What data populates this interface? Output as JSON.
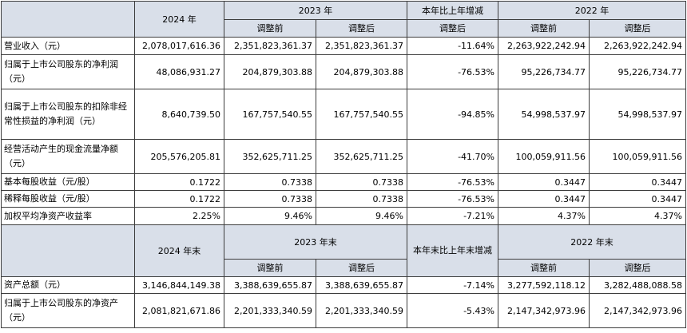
{
  "header1": {
    "y2024": "2024 年",
    "y2023": "2023 年",
    "yoy": "本年比上年增减",
    "y2022": "2022 年",
    "before": "调整前",
    "after": "调整后"
  },
  "rows1": [
    {
      "label": "营业收入（元）",
      "v": [
        "2,078,017,616.36",
        "2,351,823,361.37",
        "2,351,823,361.37",
        "-11.64%",
        "2,263,922,242.94",
        "2,263,922,242.94"
      ]
    },
    {
      "label": "归属于上市公司股东的净利润（元）",
      "v": [
        "48,086,931.27",
        "204,879,303.88",
        "204,879,303.88",
        "-76.53%",
        "95,226,734.77",
        "95,226,734.77"
      ]
    },
    {
      "label": "归属于上市公司股东的扣除非经常性损益的净利润（元）",
      "v": [
        "8,640,739.50",
        "167,757,540.55",
        "167,757,540.55",
        "-94.85%",
        "54,998,537.97",
        "54,998,537.97"
      ]
    },
    {
      "label": "经营活动产生的现金流量净额（元）",
      "v": [
        "205,576,205.81",
        "352,625,711.25",
        "352,625,711.25",
        "-41.70%",
        "100,059,911.56",
        "100,059,911.56"
      ]
    },
    {
      "label": "基本每股收益（元/股）",
      "v": [
        "0.1722",
        "0.7338",
        "0.7338",
        "-76.53%",
        "0.3447",
        "0.3447"
      ]
    },
    {
      "label": "稀释每股收益（元/股）",
      "v": [
        "0.1722",
        "0.7338",
        "0.7338",
        "-76.53%",
        "0.3447",
        "0.3447"
      ]
    },
    {
      "label": "加权平均净资产收益率",
      "v": [
        "2.25%",
        "9.46%",
        "9.46%",
        "-7.21%",
        "4.37%",
        "4.37%"
      ]
    }
  ],
  "header2": {
    "y2024": "2024 年末",
    "y2023": "2023 年末",
    "yoy": "本年末比上年末增减",
    "y2022": "2022 年末",
    "before": "调整前",
    "after": "调整后"
  },
  "rows2": [
    {
      "label": "资产总额（元）",
      "v": [
        "3,146,844,149.38",
        "3,388,639,655.87",
        "3,388,639,655.87",
        "-7.14%",
        "3,277,592,118.12",
        "3,282,488,088.58"
      ]
    },
    {
      "label": "归属于上市公司股东的净资产（元）",
      "v": [
        "2,081,821,671.86",
        "2,201,333,340.59",
        "2,201,333,340.59",
        "-5.43%",
        "2,147,342,973.96",
        "2,147,342,973.96"
      ]
    }
  ]
}
